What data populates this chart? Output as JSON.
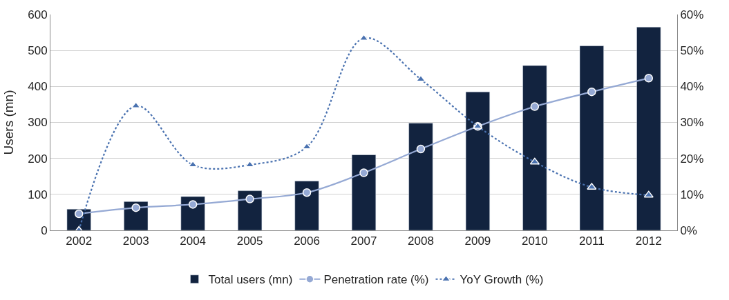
{
  "chart_data": {
    "type": "bar",
    "categories": [
      "2002",
      "2003",
      "2004",
      "2005",
      "2006",
      "2007",
      "2008",
      "2009",
      "2010",
      "2011",
      "2012"
    ],
    "ylabel": "Users (mn)",
    "series": [
      {
        "name": "Total users (mn)",
        "color": "#12233f",
        "values": [
          59,
          80,
          94,
          110,
          137,
          210,
          298,
          385,
          458,
          513,
          565
        ]
      },
      {
        "name": "Penetration rate (%)",
        "type": "line",
        "axis": "y2",
        "color": "#95a9d4",
        "marker": "circle",
        "line_style": "solid",
        "values": [
          4.6,
          6.3,
          7.2,
          8.7,
          10.5,
          16.0,
          22.6,
          28.9,
          34.4,
          38.5,
          42.3
        ]
      },
      {
        "name": "YoY Growth (%)",
        "type": "line",
        "axis": "y2",
        "color": "#4a72b0",
        "marker": "triangle",
        "line_style": "dotted",
        "values": [
          0,
          34.6,
          18.2,
          18.2,
          23.2,
          53.4,
          42.0,
          28.9,
          19.0,
          12.0,
          9.8
        ]
      }
    ],
    "ylim": [
      0,
      600
    ],
    "yticks": [
      0,
      100,
      200,
      300,
      400,
      500,
      600
    ],
    "y2lim": [
      0,
      60
    ],
    "y2ticks": [
      {
        "value": 0,
        "label": "0%"
      },
      {
        "value": 10,
        "label": "10%"
      },
      {
        "value": 20,
        "label": "20%"
      },
      {
        "value": 30,
        "label": "30%"
      },
      {
        "value": 40,
        "label": "40%"
      },
      {
        "value": 50,
        "label": "50%"
      },
      {
        "value": 60,
        "label": "60%"
      }
    ],
    "grid": "y",
    "legend": "bottom"
  }
}
